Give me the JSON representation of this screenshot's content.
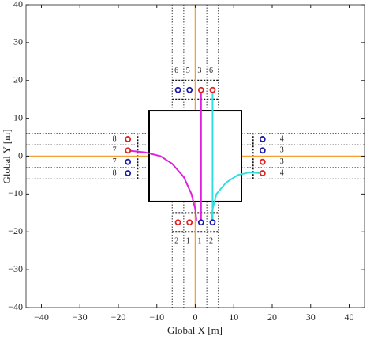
{
  "chart_data": {
    "type": "intersection",
    "xlabel": "Global X [m]",
    "ylabel": "Global Y [m]",
    "xlim": [
      -44,
      44
    ],
    "ylim": [
      -40,
      40
    ],
    "xticks": [
      {
        "value": -40,
        "label": "−40"
      },
      {
        "value": -30,
        "label": "−30"
      },
      {
        "value": -20,
        "label": "−20"
      },
      {
        "value": -10,
        "label": "−10"
      },
      0,
      10,
      20,
      30,
      40
    ],
    "yticks": [
      {
        "value": -40,
        "label": "−40"
      },
      {
        "value": -30,
        "label": "−30"
      },
      {
        "value": -20,
        "label": "−20"
      },
      {
        "value": -10,
        "label": "−10"
      },
      0,
      10,
      20,
      30,
      40
    ],
    "markers": [
      {
        "color": "#e02020",
        "x": [
          1.5,
          4.5,
          -4.5,
          -1.5,
          -17.5,
          -17.5,
          17.5,
          17.5
        ],
        "y": [
          17.5,
          17.5,
          -17.5,
          -17.5,
          4.5,
          1.5,
          -1.5,
          -4.5
        ]
      },
      {
        "color": "#1a1ab0",
        "x": [
          -4.5,
          -1.5,
          1.5,
          4.5,
          -17.5,
          -17.5,
          17.5,
          17.5
        ],
        "y": [
          17.5,
          17.5,
          -17.5,
          -17.5,
          -1.5,
          -4.5,
          4.5,
          1.5
        ]
      }
    ],
    "lines": [
      {
        "color": "#e020e0",
        "x": [
          -17.5,
          -13,
          -9,
          -6,
          -3,
          -1,
          0,
          0.3
        ],
        "y": [
          1.5,
          1,
          0,
          -2,
          -5.5,
          -10,
          -14,
          -17
        ]
      },
      {
        "color": "#e020e0",
        "x": [
          1.5,
          1.5
        ],
        "y": [
          17.5,
          -17.5
        ]
      },
      {
        "color": "#30e0e0",
        "x": [
          4.5,
          4.5
        ],
        "y": [
          17.5,
          -17.5
        ]
      },
      {
        "color": "#30e0e0",
        "x": [
          4.2,
          4.5,
          5.5,
          8,
          11,
          14,
          17.5
        ],
        "y": [
          -17,
          -14,
          -10,
          -7,
          -5,
          -4.3,
          -4.5
        ]
      }
    ],
    "lane_labels": {
      "top": [
        "6",
        "5",
        "3",
        "6"
      ],
      "bottom": [
        "2",
        "1",
        "1",
        "2"
      ],
      "left": [
        "8",
        "7",
        "7",
        "8"
      ],
      "right": [
        "4",
        "3",
        "3",
        "4"
      ]
    }
  }
}
